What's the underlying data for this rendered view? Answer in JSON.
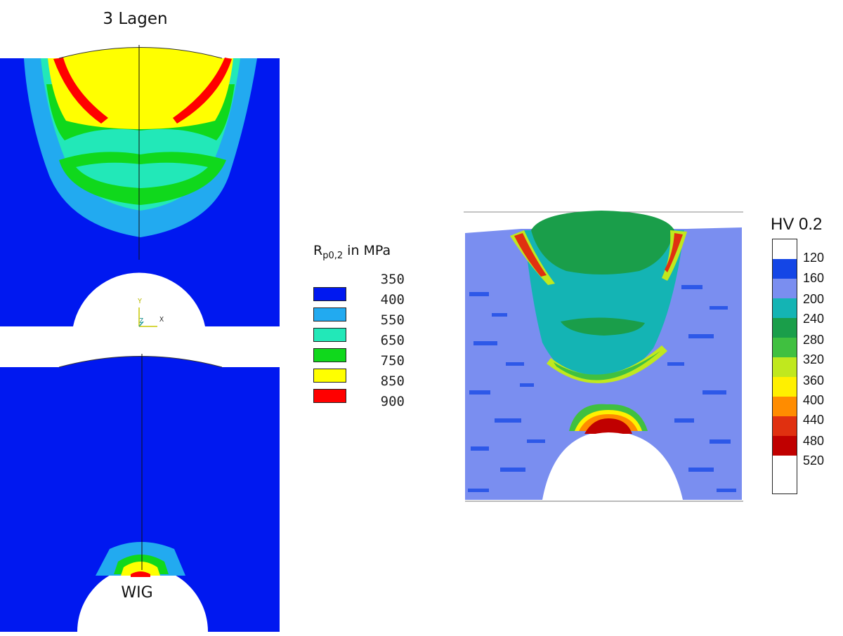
{
  "top_model": {
    "title": "3 Lagen",
    "axis_y": "Y",
    "axis_z": "Z",
    "axis_x": "X"
  },
  "bottom_model": {
    "label": "WIG"
  },
  "legend_rp": {
    "title_main": "R",
    "title_sub": "p0,2",
    "title_rest": " in MPa",
    "values": [
      "350",
      "400",
      "550",
      "650",
      "750",
      "850",
      "900"
    ],
    "colors": [
      "#0018f0",
      "#22aaf0",
      "#22e8b8",
      "#10d81c",
      "#ffff00",
      "#ff0000"
    ]
  },
  "legend_hv": {
    "title": "HV 0.2",
    "values": [
      "120",
      "160",
      "200",
      "240",
      "280",
      "320",
      "360",
      "400",
      "440",
      "480",
      "520"
    ],
    "colors": [
      "#ffffff",
      "#1446e6",
      "#7a8ef0",
      "#14b4b4",
      "#1a9e4a",
      "#40c040",
      "#c0e81e",
      "#fff000",
      "#ff8c00",
      "#e03010",
      "#c00000",
      "#ffffff"
    ]
  }
}
